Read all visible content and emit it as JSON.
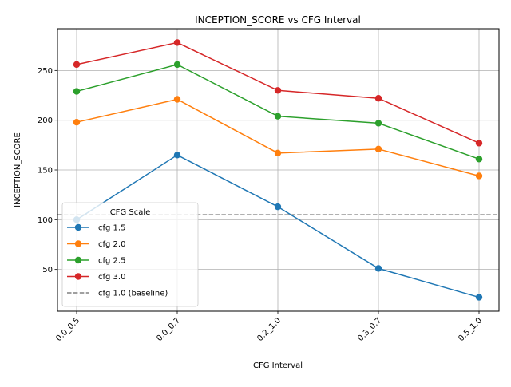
{
  "chart_data": {
    "type": "line",
    "title": "INCEPTION_SCORE vs CFG Interval",
    "xlabel": "CFG Interval",
    "ylabel": "INCEPTION_SCORE",
    "categories": [
      "0.0_0.5",
      "0.0_0.7",
      "0.2_1.0",
      "0.3_0.7",
      "0.5_1.0"
    ],
    "yticks": [
      50,
      100,
      150,
      200,
      250
    ],
    "ylim": [
      8,
      292
    ],
    "grid": true,
    "legend": {
      "title": "CFG Scale",
      "placement": "lower-left"
    },
    "series": [
      {
        "name": "cfg 1.5",
        "color": "#1f77b4",
        "values": [
          100,
          165,
          113,
          51,
          22
        ]
      },
      {
        "name": "cfg 2.0",
        "color": "#ff7f0e",
        "values": [
          198,
          221,
          167,
          171,
          144
        ]
      },
      {
        "name": "cfg 2.5",
        "color": "#2ca02c",
        "values": [
          229,
          256,
          204,
          197,
          161
        ]
      },
      {
        "name": "cfg 3.0",
        "color": "#d62728",
        "values": [
          256,
          278,
          230,
          222,
          177
        ]
      }
    ],
    "baseline": {
      "name": "cfg 1.0 (baseline)",
      "value": 105,
      "color": "#808080",
      "style": "dashed"
    }
  }
}
